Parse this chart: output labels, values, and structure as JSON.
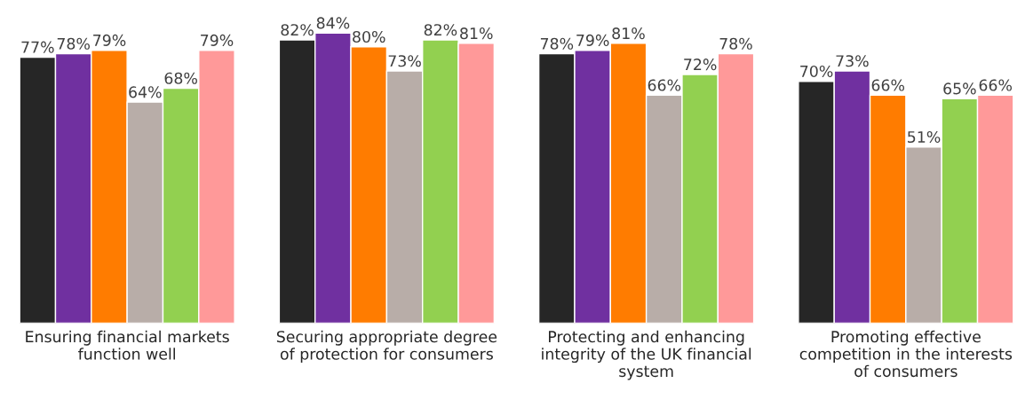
{
  "chart_data": {
    "type": "bar",
    "categories": [
      "Ensuring financial markets\nfunction well",
      "Securing appropriate degree\nof protection for consumers",
      "Protecting and enhancing\nintegrity of the UK financial\nsystem",
      "Promoting effective\ncompetition in the interests\nof consumers"
    ],
    "series": [
      {
        "color": "#262626",
        "values": [
          77,
          82,
          78,
          70
        ],
        "value_labels": [
          "77%",
          "82%",
          "78%",
          "70%"
        ]
      },
      {
        "color": "#7030a0",
        "values": [
          78,
          84,
          79,
          73
        ],
        "value_labels": [
          "78%",
          "84%",
          "79%",
          "73%"
        ]
      },
      {
        "color": "#ff7c00",
        "values": [
          79,
          80,
          81,
          66
        ],
        "value_labels": [
          "79%",
          "80%",
          "81%",
          "66%"
        ]
      },
      {
        "color": "#b8ada8",
        "values": [
          64,
          73,
          66,
          51
        ],
        "value_labels": [
          "64%",
          "73%",
          "66%",
          "51%"
        ]
      },
      {
        "color": "#92d050",
        "values": [
          68,
          82,
          72,
          65
        ],
        "value_labels": [
          "68%",
          "82%",
          "72%",
          "65%"
        ]
      },
      {
        "color": "#ff9999",
        "values": [
          79,
          81,
          78,
          66
        ],
        "value_labels": [
          "79%",
          "81%",
          "78%",
          "66%"
        ]
      }
    ],
    "grid": false,
    "legend": false
  }
}
